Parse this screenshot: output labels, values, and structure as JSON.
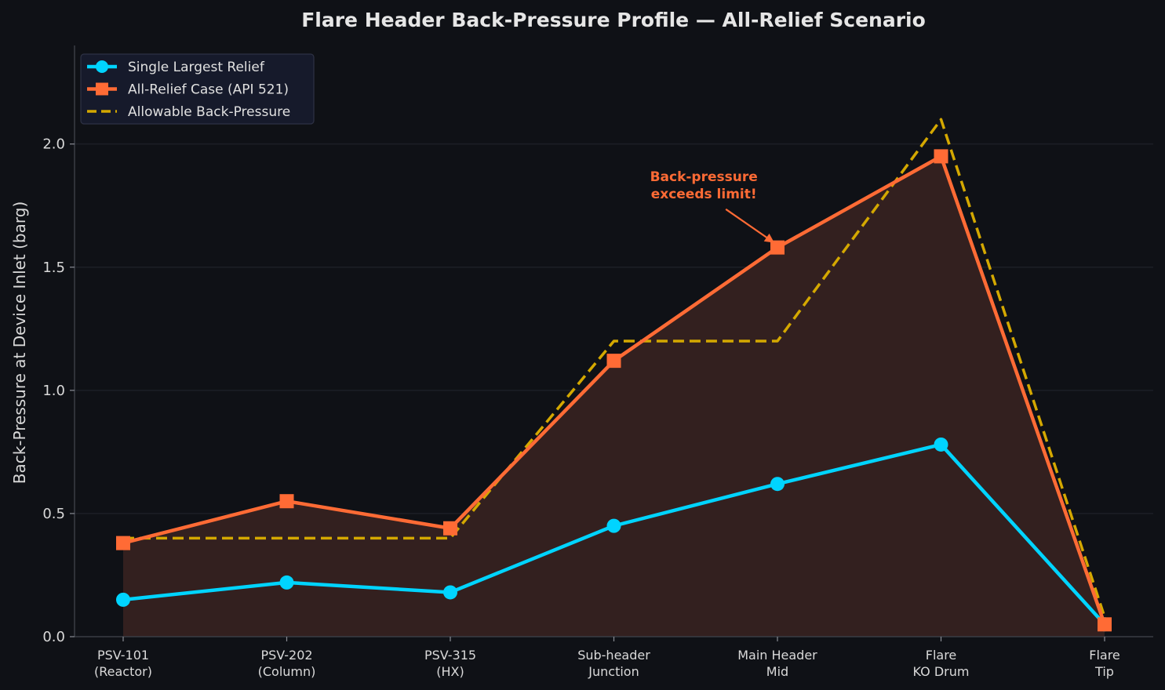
{
  "chart_data": {
    "type": "line",
    "title": "Flare Header Back-Pressure Profile — All-Relief Scenario",
    "xlabel": "",
    "ylabel": "Back-Pressure at Device Inlet (barg)",
    "categories": [
      [
        "PSV-101",
        "(Reactor)"
      ],
      [
        "PSV-202",
        "(Column)"
      ],
      [
        "PSV-315",
        "(HX)"
      ],
      [
        "Sub-header",
        "Junction"
      ],
      [
        "Main Header",
        "Mid"
      ],
      [
        "Flare",
        "KO Drum"
      ],
      [
        "Flare",
        "Tip"
      ]
    ],
    "ylim": [
      0,
      2.4
    ],
    "yticks": [
      0.0,
      0.5,
      1.0,
      1.5,
      2.0
    ],
    "ytick_labels": [
      "0.0",
      "0.5",
      "1.0",
      "1.5",
      "2.0"
    ],
    "grid": "horizontal",
    "legend_position": "top-left",
    "series": [
      {
        "name": "Single Largest Relief",
        "values": [
          0.15,
          0.22,
          0.18,
          0.45,
          0.62,
          0.78,
          0.05
        ],
        "color": "#00d4ff",
        "marker": "circle",
        "style": "solid"
      },
      {
        "name": "All-Relief Case (API 521)",
        "values": [
          0.38,
          0.55,
          0.44,
          1.12,
          1.58,
          1.95,
          0.05
        ],
        "color": "#ff6b35",
        "marker": "square",
        "style": "solid",
        "fill": true
      },
      {
        "name": "Allowable Back-Pressure",
        "values": [
          0.4,
          0.4,
          0.4,
          1.2,
          1.2,
          2.1,
          0.08
        ],
        "color": "#d4a800",
        "marker": "none",
        "style": "dashed"
      }
    ],
    "annotations": [
      {
        "lines": [
          "Back-pressure",
          "exceeds limit!"
        ],
        "target_category_index": 4,
        "target_value": 1.58,
        "text_x_value": 3.55,
        "text_y_value": 1.85,
        "color": "#ff6b35"
      }
    ]
  },
  "colors": {
    "background": "#0f1116",
    "axis": "#3a3d45",
    "grid": "#1c1f26",
    "fill": "#33201f",
    "legend_bg": "#161a2b",
    "legend_border": "#2e3245"
  }
}
